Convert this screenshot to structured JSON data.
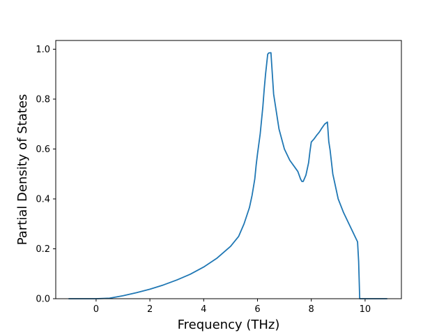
{
  "chart_data": {
    "type": "line",
    "title": "",
    "xlabel": "Frequency (THz)",
    "ylabel": "Partial Density of States",
    "xlim": [
      -1.5,
      11.35
    ],
    "ylim": [
      0,
      1.035
    ],
    "x_ticks": [
      0,
      2,
      4,
      6,
      8,
      10
    ],
    "x_tick_labels": [
      "0",
      "2",
      "4",
      "6",
      "8",
      "10"
    ],
    "y_ticks": [
      0,
      0.2,
      0.4,
      0.6,
      0.8,
      1.0
    ],
    "y_tick_labels": [
      "0.0",
      "0.2",
      "0.4",
      "0.6",
      "0.8",
      "1.0"
    ],
    "grid": false,
    "legend": "none",
    "series": [
      {
        "color": "#1f77b4",
        "x": [
          -1.0,
          -0.5,
          0.0,
          0.5,
          1.0,
          1.5,
          2.0,
          2.5,
          3.0,
          3.5,
          4.0,
          4.5,
          5.0,
          5.3,
          5.5,
          5.7,
          5.8,
          5.9,
          5.95,
          6.0,
          6.1,
          6.2,
          6.25,
          6.3,
          6.38,
          6.42,
          6.5,
          6.6,
          6.8,
          7.0,
          7.2,
          7.4,
          7.5,
          7.6,
          7.65,
          7.7,
          7.8,
          7.9,
          7.95,
          8.0,
          8.1,
          8.2,
          8.3,
          8.4,
          8.5,
          8.6,
          8.65,
          8.7,
          8.8,
          9.0,
          9.2,
          9.4,
          9.6,
          9.72,
          9.76,
          9.8,
          9.85,
          10.0,
          10.3,
          10.8
        ],
        "y": [
          0.0,
          0.0,
          0.0,
          0.002,
          0.012,
          0.024,
          0.038,
          0.055,
          0.075,
          0.098,
          0.127,
          0.163,
          0.21,
          0.25,
          0.3,
          0.365,
          0.415,
          0.48,
          0.535,
          0.58,
          0.66,
          0.77,
          0.84,
          0.9,
          0.98,
          0.985,
          0.986,
          0.82,
          0.68,
          0.6,
          0.555,
          0.525,
          0.51,
          0.48,
          0.47,
          0.47,
          0.495,
          0.545,
          0.59,
          0.628,
          0.64,
          0.655,
          0.668,
          0.685,
          0.7,
          0.708,
          0.63,
          0.595,
          0.5,
          0.4,
          0.345,
          0.3,
          0.255,
          0.228,
          0.15,
          0.0,
          0.0,
          0.0,
          0.0,
          0.0
        ]
      }
    ]
  }
}
